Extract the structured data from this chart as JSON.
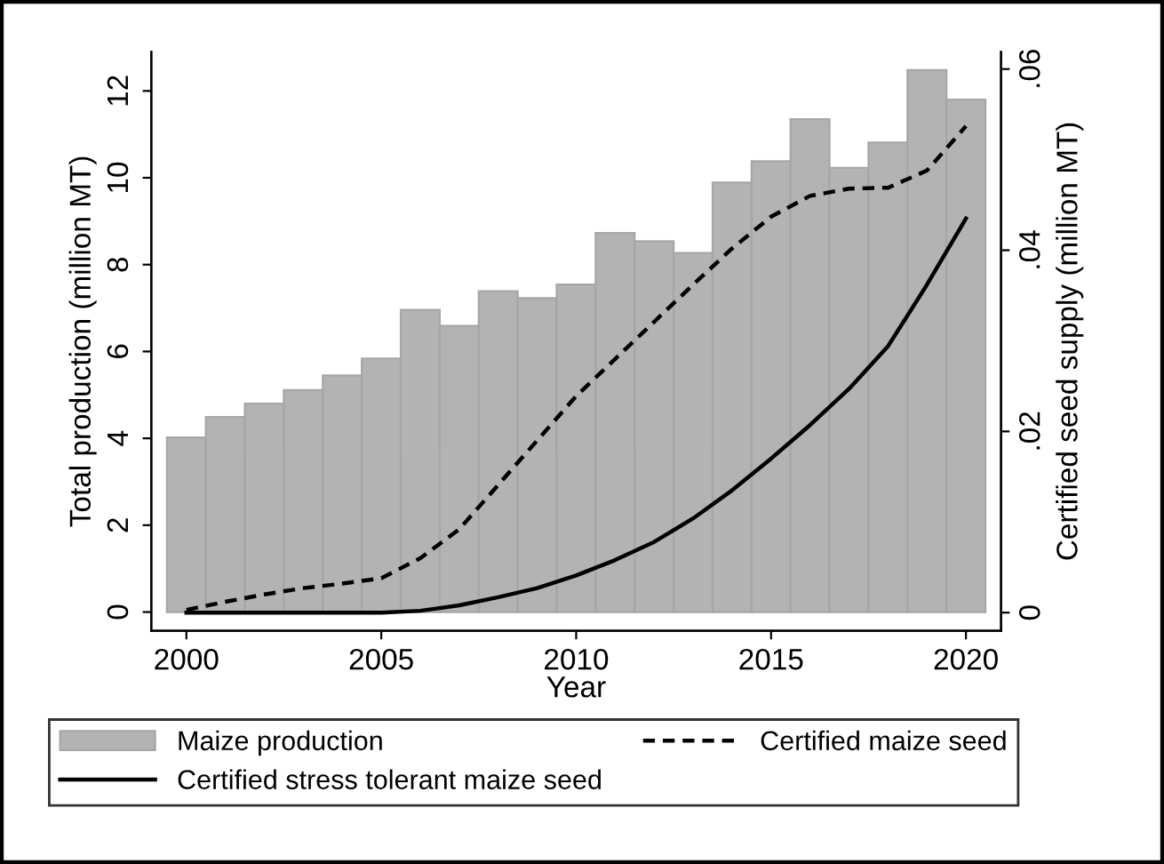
{
  "chart_data": {
    "type": "bar",
    "xlabel": "Year",
    "ylabel": "Total production (million MT)",
    "y2label": "Certified seed supply (million MT)",
    "x": [
      2000,
      2001,
      2002,
      2003,
      2004,
      2005,
      2006,
      2007,
      2008,
      2009,
      2010,
      2011,
      2012,
      2013,
      2014,
      2015,
      2016,
      2017,
      2018,
      2019,
      2020
    ],
    "xlim": [
      1999.1,
      2020.9
    ],
    "xticks": [
      2000,
      2005,
      2010,
      2015,
      2020
    ],
    "ylim": [
      -0.43,
      12.9
    ],
    "yticks": [
      0,
      2,
      4,
      6,
      8,
      10,
      12
    ],
    "y2lim": [
      -0.002,
      0.0619
    ],
    "y2ticks": [
      {
        "value": 0,
        "label": "0"
      },
      {
        "value": 0.02,
        "label": ".02"
      },
      {
        "value": 0.04,
        "label": ".04"
      },
      {
        "value": 0.06,
        "label": ".06"
      }
    ],
    "legend": "bottom",
    "grid": false,
    "series": [
      {
        "name": "Maize production",
        "color": "#b3b3b3",
        "values": [
          4.02,
          4.49,
          4.8,
          5.11,
          5.45,
          5.84,
          6.96,
          6.59,
          7.39,
          7.23,
          7.54,
          8.73,
          8.54,
          8.27,
          9.89,
          10.38,
          11.35,
          10.23,
          10.81,
          12.48,
          11.8
        ]
      },
      {
        "name": "Certified maize seed",
        "type": "line",
        "axis": "y2",
        "line_style": "dashed",
        "color": "#000000",
        "values": [
          0.0003,
          0.0012,
          0.002,
          0.0027,
          0.0032,
          0.0038,
          0.006,
          0.0092,
          0.0141,
          0.019,
          0.0239,
          0.028,
          0.0321,
          0.0362,
          0.0402,
          0.0437,
          0.046,
          0.0468,
          0.0469,
          0.0488,
          0.0537
        ]
      },
      {
        "name": "Certified stress tolerant maize seed",
        "type": "line",
        "axis": "y2",
        "line_style": "solid",
        "color": "#000000",
        "values": [
          0,
          0,
          0,
          0,
          0,
          0,
          0.0002,
          0.0008,
          0.0017,
          0.0027,
          0.0041,
          0.0058,
          0.0078,
          0.0104,
          0.0135,
          0.017,
          0.0207,
          0.0247,
          0.0294,
          0.0362,
          0.0435
        ]
      }
    ]
  }
}
